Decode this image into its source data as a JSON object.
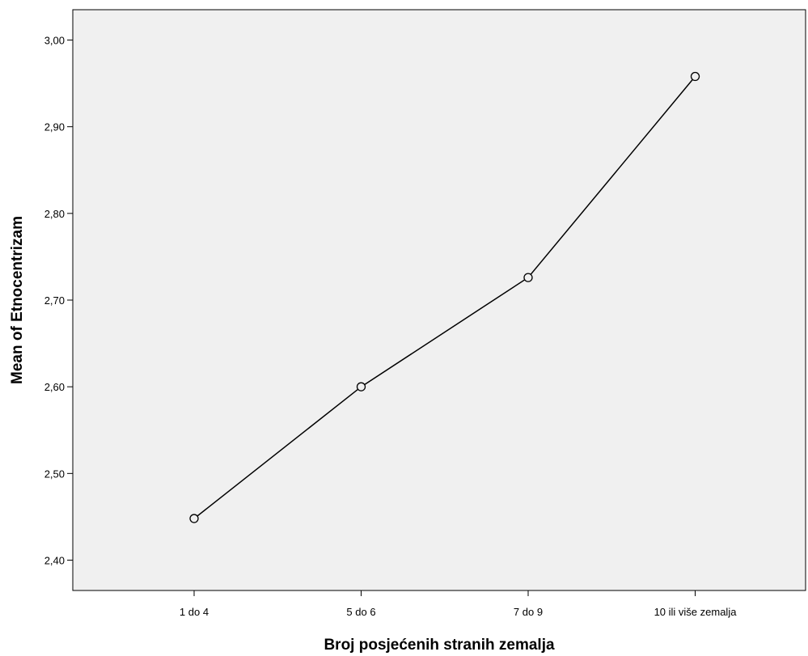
{
  "chart_data": {
    "type": "line",
    "title": "",
    "xlabel": "Broj posjećenih stranih zemalja",
    "ylabel": "Mean of Etnocentrizam",
    "categories": [
      "1 do 4",
      "5 do 6",
      "7 do 9",
      "10 ili više zemalja"
    ],
    "series": [
      {
        "values": [
          2.448,
          2.6,
          2.726,
          2.958
        ]
      }
    ],
    "ylim": [
      2.365,
      3.035
    ],
    "yticks": [
      {
        "value": 2.4,
        "label": "2,40"
      },
      {
        "value": 2.5,
        "label": "2,50"
      },
      {
        "value": 2.6,
        "label": "2,60"
      },
      {
        "value": 2.7,
        "label": "2,70"
      },
      {
        "value": 2.8,
        "label": "2,80"
      },
      {
        "value": 2.9,
        "label": "2,90"
      },
      {
        "value": 3.0,
        "label": "3,00"
      }
    ],
    "grid": false,
    "legend": "none",
    "colors": {
      "plot_background": "#f0f0f0",
      "line": "#000000",
      "marker_fill": "#f0f0f0"
    }
  }
}
